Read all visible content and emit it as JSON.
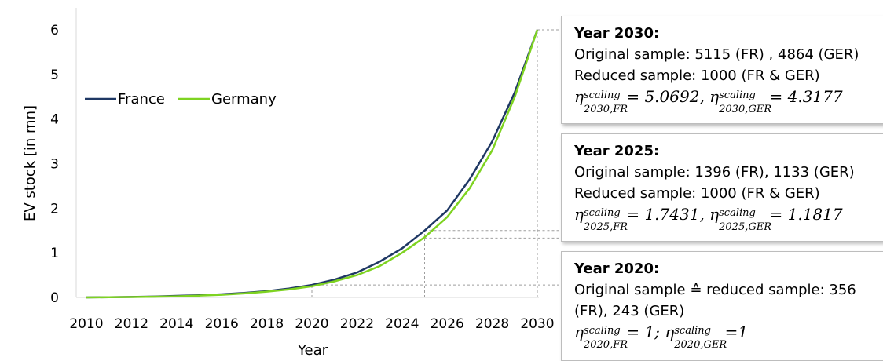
{
  "chart_data": {
    "type": "line",
    "xlabel": "Year",
    "ylabel": "EV stock [in mn]",
    "xlim": [
      2010,
      2030
    ],
    "ylim": [
      0,
      6
    ],
    "x_ticks": [
      "2010",
      "2012",
      "2014",
      "2016",
      "2018",
      "2020",
      "2022",
      "2024",
      "2026",
      "2028",
      "2030"
    ],
    "y_ticks": [
      "0",
      "1",
      "2",
      "3",
      "4",
      "5",
      "6"
    ],
    "x": [
      2010,
      2011,
      2012,
      2013,
      2014,
      2015,
      2016,
      2017,
      2018,
      2019,
      2020,
      2021,
      2022,
      2023,
      2024,
      2025,
      2026,
      2027,
      2028,
      2029,
      2030
    ],
    "series": [
      {
        "name": "France",
        "color": "#1f3864",
        "values": [
          0.0,
          0.005,
          0.01,
          0.02,
          0.035,
          0.05,
          0.07,
          0.1,
          0.14,
          0.2,
          0.28,
          0.4,
          0.56,
          0.8,
          1.1,
          1.5,
          1.95,
          2.65,
          3.5,
          4.6,
          6.0
        ]
      },
      {
        "name": "Germany",
        "color": "#7ed321",
        "values": [
          0.0,
          0.004,
          0.008,
          0.015,
          0.025,
          0.04,
          0.06,
          0.09,
          0.13,
          0.18,
          0.25,
          0.36,
          0.5,
          0.7,
          1.0,
          1.35,
          1.8,
          2.45,
          3.3,
          4.5,
          6.0
        ]
      }
    ],
    "legend_position": "upper-left",
    "grid": false,
    "guides": [
      {
        "x": 2020,
        "y": 0.28
      },
      {
        "x": 2025,
        "y": 1.5
      },
      {
        "x": 2025,
        "y": 1.33
      },
      {
        "x": 2030,
        "y": 6.0
      }
    ]
  },
  "boxes": [
    {
      "header": "Year 2030:",
      "lines": [
        "Original sample: 5115 (FR) , 4864 (GER)",
        "Reduced sample: 1000 (FR & GER)"
      ],
      "eta": {
        "sub1": "2030,FR",
        "val1": "= 5.0692,",
        "sub2": "2030,GER",
        "val2": "= 4.3177"
      }
    },
    {
      "header": "Year 2025:",
      "lines": [
        "Original sample: 1396 (FR), 1133 (GER)",
        "Reduced sample: 1000 (FR & GER)"
      ],
      "eta": {
        "sub1": "2025,FR",
        "val1": "= 1.7431,",
        "sub2": "2025,GER",
        "val2": "= 1.1817"
      }
    },
    {
      "header": "Year 2020:",
      "lines": [
        "Original sample ≙ reduced sample: 356",
        "(FR), 243 (GER)"
      ],
      "eta": {
        "sub1": "2020,FR",
        "val1": "= 1;",
        "sub2": "2020,GER",
        "val2": "=1"
      }
    }
  ],
  "eta_symbol": "η",
  "eta_superscript": "scaling"
}
